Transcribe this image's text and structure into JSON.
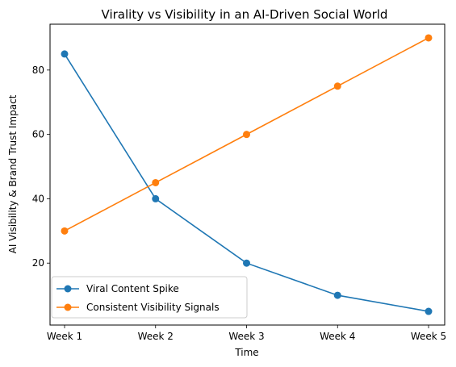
{
  "chart_data": {
    "type": "line",
    "title": "Virality vs Visibility in an AI-Driven Social World",
    "xlabel": "Time",
    "ylabel": "AI Visibility & Brand Trust Impact",
    "categories": [
      "Week 1",
      "Week 2",
      "Week 3",
      "Week 4",
      "Week 5"
    ],
    "series": [
      {
        "name": "Viral Content Spike",
        "values": [
          85,
          40,
          20,
          10,
          5
        ],
        "color": "#1f77b4"
      },
      {
        "name": "Consistent Visibility Signals",
        "values": [
          30,
          45,
          60,
          75,
          90
        ],
        "color": "#ff7f0e"
      }
    ],
    "ylim": [
      0.75,
      94.25
    ],
    "yticks": [
      20,
      40,
      60,
      80
    ],
    "grid": false,
    "legend": "lower-left",
    "markers": "circle"
  }
}
